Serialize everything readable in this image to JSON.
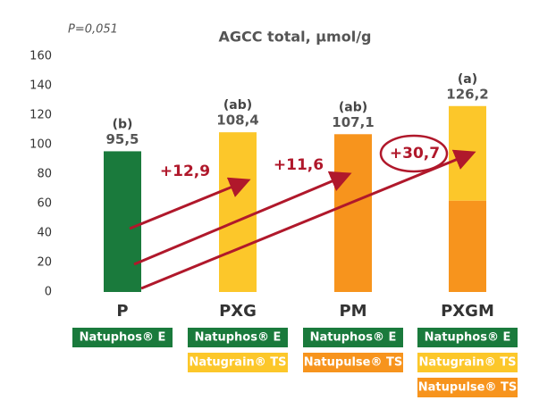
{
  "chart_data": {
    "type": "bar",
    "title": "AGCC total, µmol/g",
    "annotation": "P=0,051",
    "categories": [
      "P",
      "PXG",
      "PM",
      "PXGM"
    ],
    "series": [
      {
        "colors": [
          "#1a7a3c",
          "#fcc72a",
          "#f7941d",
          "#f7941d"
        ],
        "values": [
          95.5,
          108.4,
          107.1,
          62
        ]
      },
      {
        "colors": [
          null,
          null,
          null,
          "#fcc72a"
        ],
        "values": [
          null,
          null,
          null,
          64.2
        ]
      }
    ],
    "value_labels": [
      "95,5",
      "108,4",
      "107,1",
      "126,2"
    ],
    "letters": [
      "(b)",
      "(ab)",
      "(ab)",
      "(a)"
    ],
    "deltas": [
      "+12,9",
      "+11,6",
      "+30,7"
    ],
    "ylim": [
      0,
      160
    ],
    "yticks": [
      0,
      20,
      40,
      60,
      80,
      100,
      120,
      140,
      160
    ],
    "products": [
      [
        "Natuphos® E"
      ],
      [
        "Natuphos® E",
        "Natugrain® TS"
      ],
      [
        "Natuphos® E",
        "Natupulse® TS"
      ],
      [
        "Natuphos® E",
        "Natugrain® TS",
        "Natupulse® TS"
      ]
    ]
  }
}
